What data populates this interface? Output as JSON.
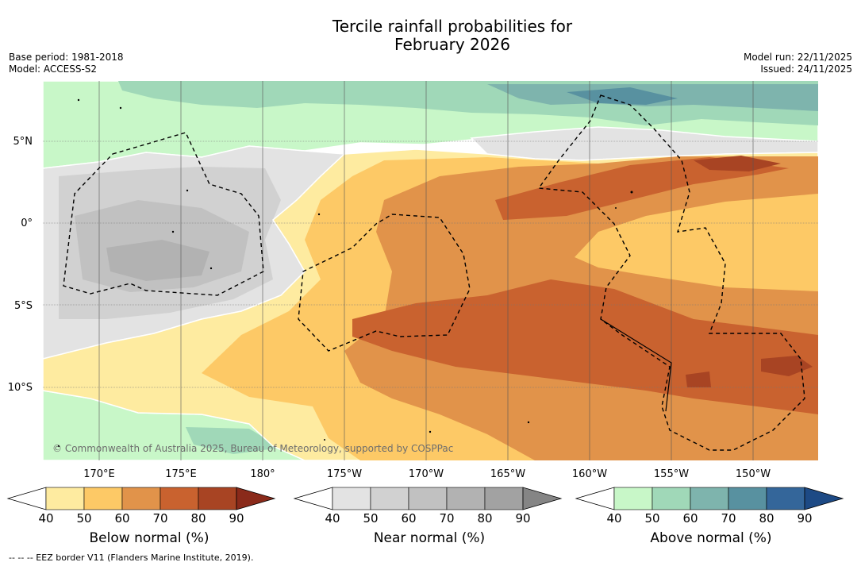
{
  "title": {
    "line1": "Tercile rainfall probabilities for",
    "line2": "February 2026"
  },
  "meta_left": {
    "base_period": "Base period: 1981-2018",
    "model": "Model: ACCESS-S2"
  },
  "meta_right": {
    "model_run": "Model run: 22/11/2025",
    "issued": "Issued: 24/11/2025"
  },
  "lat_labels": [
    "5°N",
    "0°",
    "5°S",
    "10°S"
  ],
  "lon_labels": [
    "170°E",
    "175°E",
    "180°",
    "175°W",
    "170°W",
    "165°W",
    "160°W",
    "155°W",
    "150°W"
  ],
  "copyright": "© Commonwealth of Australia 2025, Bureau of Meteorology, supported by COSPPac",
  "footer": "--  --  -- EEZ border V11 (Flanders Marine Institute, 2019).",
  "colorbars": [
    {
      "name": "below",
      "title": "Below normal (%)",
      "ticks": [
        "40",
        "50",
        "60",
        "70",
        "80",
        "90"
      ],
      "colors": [
        "#ffffff",
        "#feeba0",
        "#fdc966",
        "#e1934a",
        "#c9622f",
        "#a84423",
        "#8a2a1a"
      ]
    },
    {
      "name": "near",
      "title": "Near normal (%)",
      "ticks": [
        "40",
        "50",
        "60",
        "70",
        "80",
        "90"
      ],
      "colors": [
        "#ffffff",
        "#e3e3e3",
        "#d1d1d1",
        "#c1c1c1",
        "#b2b2b2",
        "#a2a2a2",
        "#858585"
      ]
    },
    {
      "name": "above",
      "title": "Above normal (%)",
      "ticks": [
        "40",
        "50",
        "60",
        "70",
        "80",
        "90"
      ],
      "colors": [
        "#ffffff",
        "#c8f7c8",
        "#a0d8b8",
        "#7eb4ad",
        "#5891a0",
        "#34669a",
        "#1d4a85"
      ]
    }
  ]
}
